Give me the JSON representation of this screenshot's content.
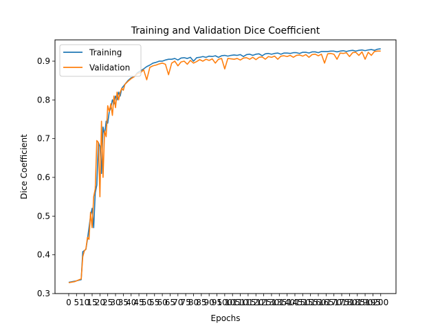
{
  "chart_data": {
    "type": "line",
    "title": "Training and Validation Dice Coefficient",
    "xlabel": "Epochs",
    "ylabel": "Dice Coefficient",
    "xlim": [
      -8.8,
      209.8
    ],
    "ylim": [
      0.3,
      0.955
    ],
    "yticks": [
      0.3,
      0.4,
      0.5,
      0.6,
      0.7,
      0.8,
      0.9
    ],
    "ytick_labels": [
      "0.3",
      "0.4",
      "0.5",
      "0.6",
      "0.7",
      "0.8",
      "0.9"
    ],
    "xticks": [
      0,
      5,
      10,
      15,
      20,
      25,
      30,
      35,
      40,
      45,
      50,
      55,
      60,
      65,
      70,
      75,
      80,
      85,
      90,
      95,
      100,
      105,
      110,
      115,
      120,
      125,
      130,
      135,
      140,
      145,
      150,
      155,
      160,
      165,
      170,
      175,
      180,
      185,
      190,
      195,
      200
    ],
    "xtick_labels": [
      "0",
      "5",
      "10",
      "15",
      "20",
      "25",
      "30",
      "35",
      "40",
      "45",
      "50",
      "55",
      "60",
      "65",
      "70",
      "75",
      "80",
      "85",
      "90",
      "95",
      "100",
      "105",
      "110",
      "115",
      "120",
      "125",
      "130",
      "135",
      "140",
      "145",
      "150",
      "155",
      "160",
      "165",
      "170",
      "175",
      "180",
      "185",
      "190",
      "195",
      "200"
    ],
    "grid": false,
    "legend_position": "top-left",
    "series": [
      {
        "name": "Training",
        "color": "#1f77b4",
        "points": [
          [
            0,
            0.329
          ],
          [
            4,
            0.332
          ],
          [
            8,
            0.336
          ],
          [
            9,
            0.408
          ],
          [
            11,
            0.414
          ],
          [
            12,
            0.44
          ],
          [
            14,
            0.5
          ],
          [
            15,
            0.52
          ],
          [
            16,
            0.47
          ],
          [
            17,
            0.56
          ],
          [
            18,
            0.58
          ],
          [
            19,
            0.69
          ],
          [
            20,
            0.68
          ],
          [
            21,
            0.61
          ],
          [
            22,
            0.73
          ],
          [
            23,
            0.71
          ],
          [
            24,
            0.745
          ],
          [
            25,
            0.74
          ],
          [
            26,
            0.77
          ],
          [
            27,
            0.78
          ],
          [
            28,
            0.8
          ],
          [
            29,
            0.79
          ],
          [
            30,
            0.81
          ],
          [
            31,
            0.8
          ],
          [
            32,
            0.82
          ],
          [
            33,
            0.81
          ],
          [
            34,
            0.83
          ],
          [
            36,
            0.84
          ],
          [
            38,
            0.85
          ],
          [
            40,
            0.857
          ],
          [
            42,
            0.86
          ],
          [
            44,
            0.87
          ],
          [
            46,
            0.875
          ],
          [
            48,
            0.88
          ],
          [
            50,
            0.886
          ],
          [
            52,
            0.89
          ],
          [
            54,
            0.895
          ],
          [
            56,
            0.897
          ],
          [
            58,
            0.9
          ],
          [
            60,
            0.9
          ],
          [
            62,
            0.903
          ],
          [
            64,
            0.905
          ],
          [
            66,
            0.905
          ],
          [
            68,
            0.907
          ],
          [
            70,
            0.903
          ],
          [
            72,
            0.908
          ],
          [
            74,
            0.909
          ],
          [
            76,
            0.907
          ],
          [
            78,
            0.91
          ],
          [
            80,
            0.9
          ],
          [
            82,
            0.909
          ],
          [
            84,
            0.91
          ],
          [
            86,
            0.912
          ],
          [
            88,
            0.91
          ],
          [
            90,
            0.913
          ],
          [
            92,
            0.912
          ],
          [
            94,
            0.914
          ],
          [
            96,
            0.91
          ],
          [
            98,
            0.914
          ],
          [
            100,
            0.915
          ],
          [
            102,
            0.913
          ],
          [
            104,
            0.915
          ],
          [
            106,
            0.916
          ],
          [
            108,
            0.915
          ],
          [
            110,
            0.917
          ],
          [
            112,
            0.912
          ],
          [
            114,
            0.917
          ],
          [
            116,
            0.918
          ],
          [
            118,
            0.915
          ],
          [
            120,
            0.918
          ],
          [
            122,
            0.919
          ],
          [
            124,
            0.914
          ],
          [
            126,
            0.919
          ],
          [
            128,
            0.92
          ],
          [
            130,
            0.918
          ],
          [
            132,
            0.92
          ],
          [
            134,
            0.921
          ],
          [
            136,
            0.918
          ],
          [
            138,
            0.921
          ],
          [
            140,
            0.921
          ],
          [
            142,
            0.92
          ],
          [
            144,
            0.922
          ],
          [
            146,
            0.922
          ],
          [
            148,
            0.92
          ],
          [
            150,
            0.923
          ],
          [
            152,
            0.923
          ],
          [
            154,
            0.921
          ],
          [
            156,
            0.924
          ],
          [
            158,
            0.924
          ],
          [
            160,
            0.922
          ],
          [
            162,
            0.925
          ],
          [
            164,
            0.925
          ],
          [
            166,
            0.925
          ],
          [
            168,
            0.926
          ],
          [
            170,
            0.926
          ],
          [
            172,
            0.924
          ],
          [
            174,
            0.926
          ],
          [
            176,
            0.927
          ],
          [
            178,
            0.925
          ],
          [
            180,
            0.927
          ],
          [
            182,
            0.928
          ],
          [
            184,
            0.926
          ],
          [
            186,
            0.928
          ],
          [
            188,
            0.929
          ],
          [
            190,
            0.927
          ],
          [
            192,
            0.929
          ],
          [
            194,
            0.93
          ],
          [
            196,
            0.928
          ],
          [
            198,
            0.931
          ],
          [
            200,
            0.932
          ]
        ]
      },
      {
        "name": "Validation",
        "color": "#ff7f0e",
        "points": [
          [
            0,
            0.328
          ],
          [
            4,
            0.331
          ],
          [
            8,
            0.338
          ],
          [
            9,
            0.395
          ],
          [
            10,
            0.41
          ],
          [
            11,
            0.415
          ],
          [
            12,
            0.445
          ],
          [
            13,
            0.44
          ],
          [
            14,
            0.51
          ],
          [
            15,
            0.47
          ],
          [
            16,
            0.55
          ],
          [
            17,
            0.57
          ],
          [
            18,
            0.695
          ],
          [
            19,
            0.69
          ],
          [
            20,
            0.55
          ],
          [
            21,
            0.745
          ],
          [
            22,
            0.6
          ],
          [
            23,
            0.72
          ],
          [
            24,
            0.705
          ],
          [
            25,
            0.785
          ],
          [
            26,
            0.77
          ],
          [
            27,
            0.79
          ],
          [
            28,
            0.76
          ],
          [
            29,
            0.81
          ],
          [
            30,
            0.78
          ],
          [
            31,
            0.82
          ],
          [
            32,
            0.8
          ],
          [
            33,
            0.82
          ],
          [
            34,
            0.83
          ],
          [
            35,
            0.825
          ],
          [
            36,
            0.84
          ],
          [
            38,
            0.848
          ],
          [
            40,
            0.855
          ],
          [
            42,
            0.86
          ],
          [
            44,
            0.868
          ],
          [
            46,
            0.87
          ],
          [
            48,
            0.878
          ],
          [
            50,
            0.852
          ],
          [
            52,
            0.884
          ],
          [
            54,
            0.888
          ],
          [
            56,
            0.89
          ],
          [
            58,
            0.893
          ],
          [
            60,
            0.895
          ],
          [
            62,
            0.892
          ],
          [
            64,
            0.865
          ],
          [
            66,
            0.895
          ],
          [
            68,
            0.9
          ],
          [
            70,
            0.888
          ],
          [
            72,
            0.898
          ],
          [
            74,
            0.9
          ],
          [
            76,
            0.892
          ],
          [
            78,
            0.902
          ],
          [
            80,
            0.895
          ],
          [
            82,
            0.899
          ],
          [
            84,
            0.904
          ],
          [
            86,
            0.9
          ],
          [
            88,
            0.905
          ],
          [
            90,
            0.902
          ],
          [
            92,
            0.906
          ],
          [
            94,
            0.895
          ],
          [
            96,
            0.905
          ],
          [
            98,
            0.907
          ],
          [
            100,
            0.88
          ],
          [
            102,
            0.907
          ],
          [
            104,
            0.906
          ],
          [
            106,
            0.905
          ],
          [
            108,
            0.907
          ],
          [
            110,
            0.903
          ],
          [
            112,
            0.908
          ],
          [
            114,
            0.909
          ],
          [
            116,
            0.905
          ],
          [
            118,
            0.91
          ],
          [
            120,
            0.904
          ],
          [
            122,
            0.91
          ],
          [
            124,
            0.911
          ],
          [
            126,
            0.905
          ],
          [
            128,
            0.912
          ],
          [
            130,
            0.91
          ],
          [
            132,
            0.913
          ],
          [
            134,
            0.905
          ],
          [
            136,
            0.913
          ],
          [
            138,
            0.914
          ],
          [
            140,
            0.912
          ],
          [
            142,
            0.915
          ],
          [
            144,
            0.91
          ],
          [
            146,
            0.915
          ],
          [
            148,
            0.916
          ],
          [
            150,
            0.913
          ],
          [
            152,
            0.917
          ],
          [
            154,
            0.91
          ],
          [
            156,
            0.917
          ],
          [
            158,
            0.918
          ],
          [
            160,
            0.914
          ],
          [
            162,
            0.918
          ],
          [
            164,
            0.895
          ],
          [
            166,
            0.919
          ],
          [
            168,
            0.92
          ],
          [
            170,
            0.918
          ],
          [
            172,
            0.905
          ],
          [
            174,
            0.921
          ],
          [
            176,
            0.92
          ],
          [
            178,
            0.922
          ],
          [
            180,
            0.912
          ],
          [
            182,
            0.922
          ],
          [
            184,
            0.923
          ],
          [
            186,
            0.915
          ],
          [
            188,
            0.924
          ],
          [
            190,
            0.905
          ],
          [
            192,
            0.923
          ],
          [
            194,
            0.915
          ],
          [
            196,
            0.925
          ],
          [
            198,
            0.926
          ],
          [
            200,
            0.926
          ]
        ]
      }
    ]
  }
}
